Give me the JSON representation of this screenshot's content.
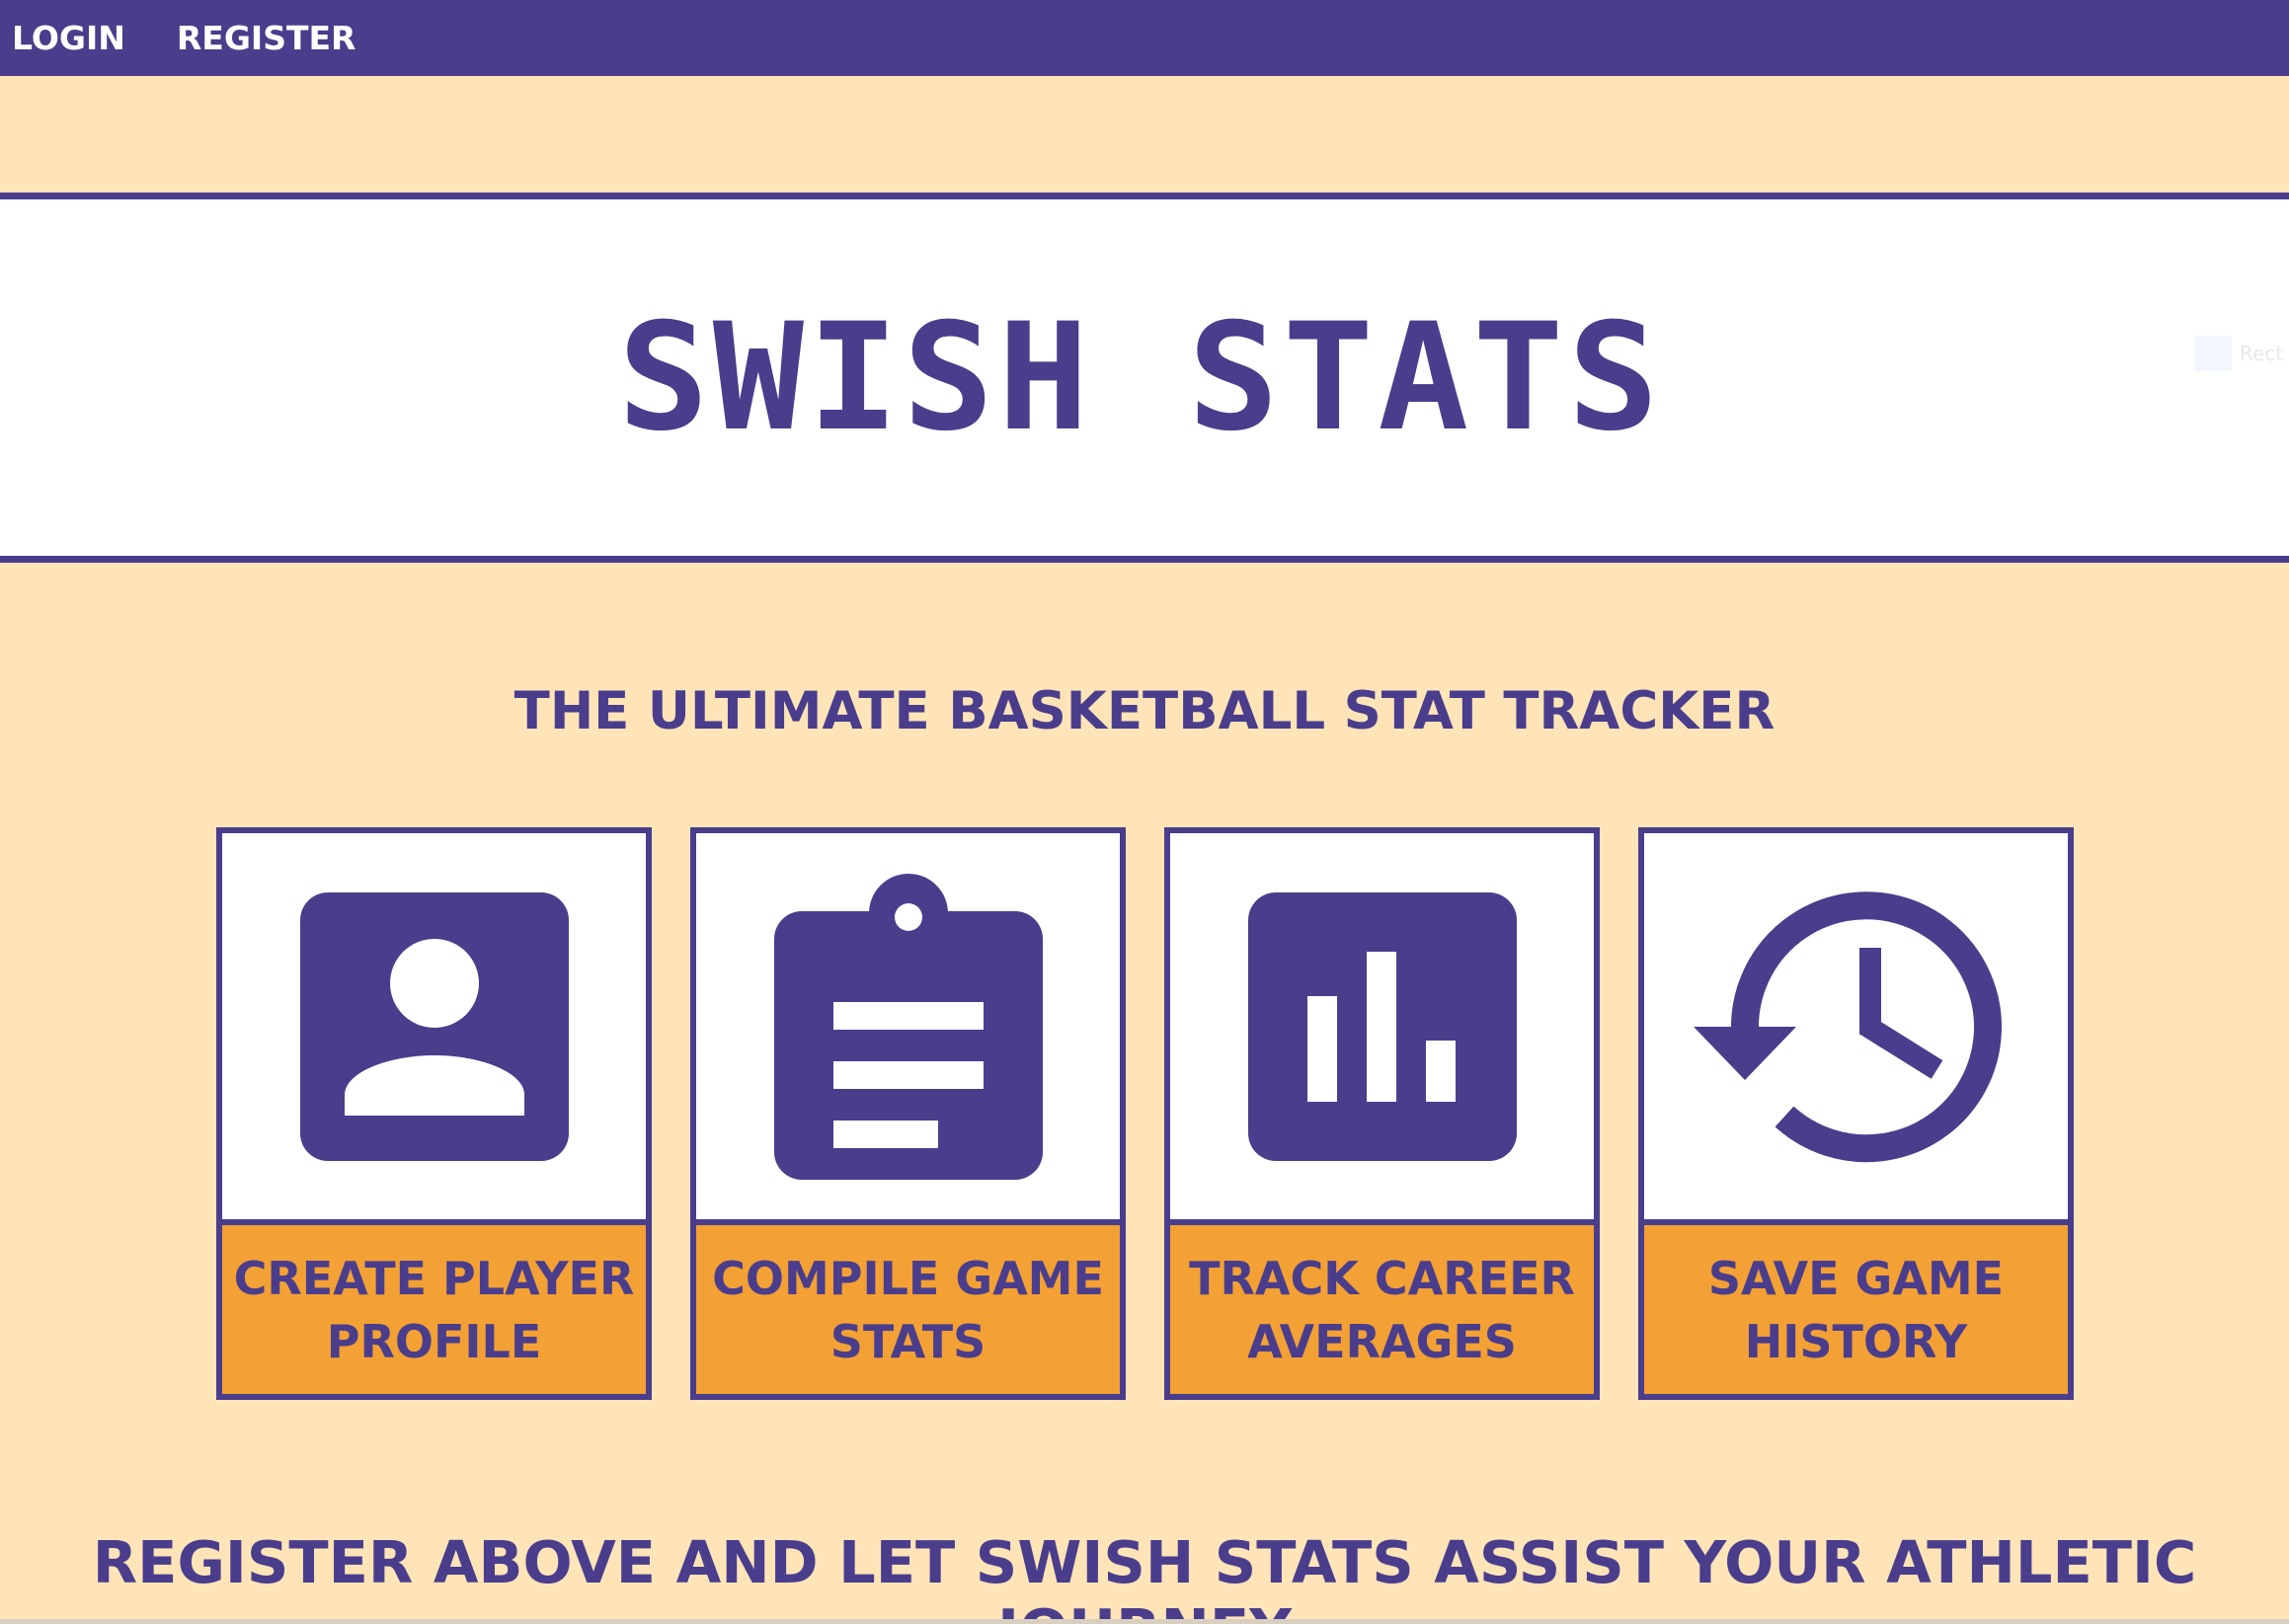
{
  "nav": {
    "login_label": "LOGIN",
    "register_label": "REGISTER"
  },
  "banner": {
    "title": "SWISH STATS"
  },
  "tagline": "THE ULTIMATE BASKETBALL STAT TRACKER",
  "features": [
    {
      "icon": "player-profile-icon",
      "label_line1": "CREATE PLAYER",
      "label_line2": "PROFILE"
    },
    {
      "icon": "clipboard-icon",
      "label_line1": "COMPILE GAME",
      "label_line2": "STATS"
    },
    {
      "icon": "bar-chart-icon",
      "label_line1": "TRACK CAREER",
      "label_line2": "AVERAGES"
    },
    {
      "icon": "history-icon",
      "label_line1": "SAVE GAME",
      "label_line2": "HISTORY"
    }
  ],
  "footer_text": "REGISTER ABOVE AND LET SWISH STATS ASSIST YOUR ATHLETIC JOURNEY",
  "ghost_label": "Rect",
  "colors": {
    "primary": "#4a3d8c",
    "background": "#ffe4b8",
    "accent": "#f3a134",
    "white": "#ffffff"
  }
}
